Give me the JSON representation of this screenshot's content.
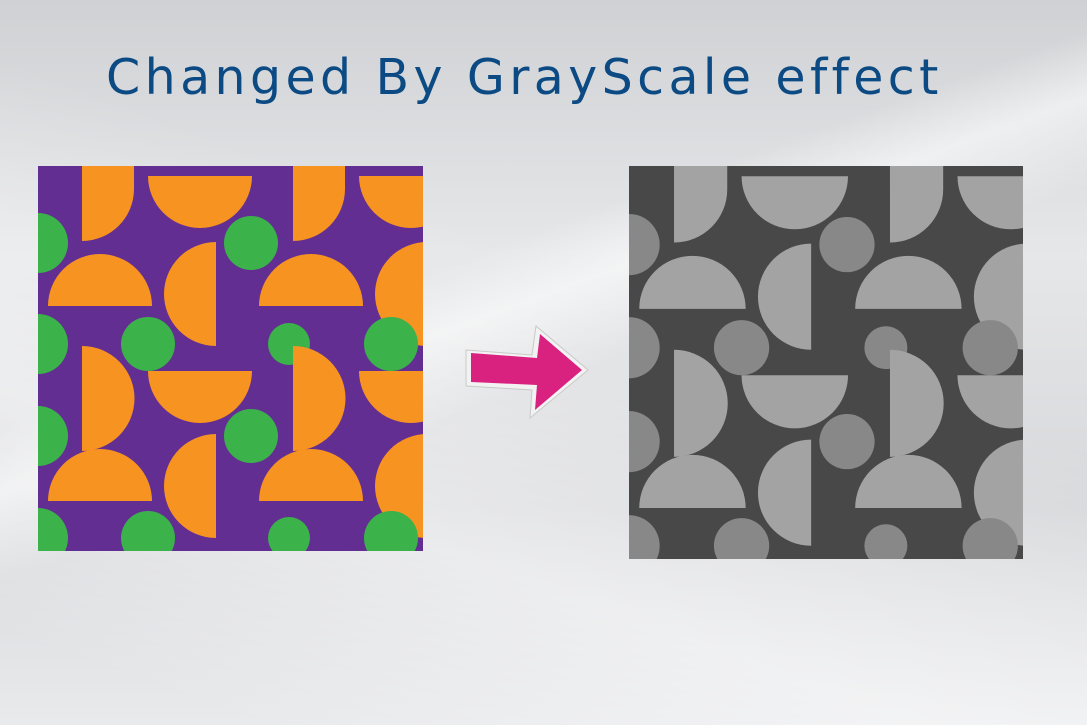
{
  "slide": {
    "title": "Changed By GrayScale effect",
    "title_color": "#0c4a84"
  },
  "original_image": {
    "description_icon": "geometric-pattern-image",
    "colors": {
      "background": "#632e92",
      "half_shape": "#f79320",
      "circle": "#3bb24a"
    }
  },
  "grayscale_image": {
    "description_icon": "geometric-pattern-image",
    "colors": {
      "background": "#484848",
      "half_shape": "#a3a3a3",
      "circle": "#888888"
    }
  },
  "arrow": {
    "icon": "right-arrow-icon",
    "color": "#d9217f",
    "outline": "#f2f2f2"
  }
}
